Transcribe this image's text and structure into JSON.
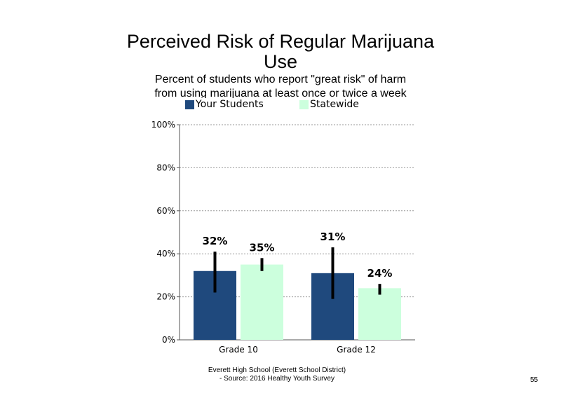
{
  "page_number": "55",
  "footer": {
    "line1": "Everett High School (Everett School District)",
    "line2": "- Source: 2016 Healthy Youth Survey"
  },
  "chart_data": {
    "type": "bar",
    "title_line1": "Perceived Risk of Regular Marijuana",
    "title_line2": "Use",
    "subtitle_line1": "Percent of students who report \"great risk\" of harm",
    "subtitle_line2": "from using marijuana at least once or twice a week",
    "categories": [
      "Grade 10",
      "Grade 12"
    ],
    "series": [
      {
        "name": "Your Students",
        "color": "#1f497d",
        "values": [
          32,
          31
        ],
        "labels": [
          "32%",
          "31%"
        ],
        "error_low": [
          22,
          19
        ],
        "error_high": [
          41,
          43
        ]
      },
      {
        "name": "Statewide",
        "color": "#ccffdd",
        "values": [
          35,
          24
        ],
        "labels": [
          "35%",
          "24%"
        ],
        "error_low": [
          32,
          21
        ],
        "error_high": [
          38,
          26
        ]
      }
    ],
    "ylim": [
      0,
      100
    ],
    "yticks": [
      0,
      20,
      40,
      60,
      80,
      100
    ],
    "ytick_labels": [
      "0%",
      "20%",
      "40%",
      "60%",
      "80%",
      "100%"
    ],
    "grid": "dotted horizontal",
    "legend": "top"
  }
}
